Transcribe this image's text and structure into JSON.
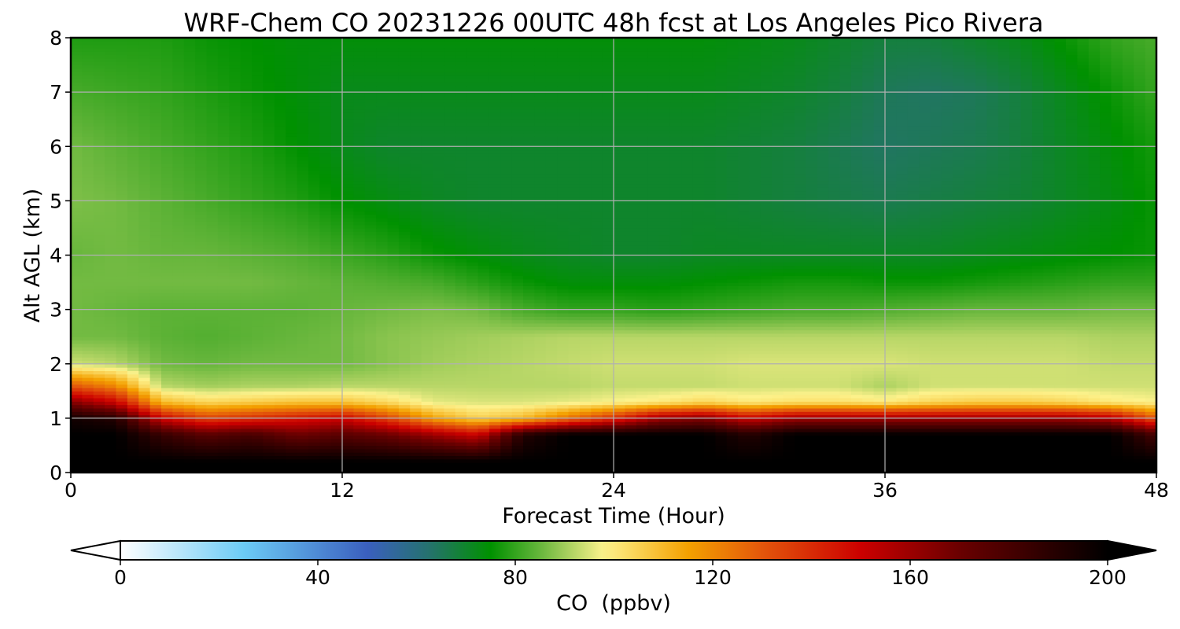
{
  "chart_data": {
    "type": "heatmap",
    "title": "WRF-Chem CO  20231226 00UTC 48h fcst at Los Angeles Pico Rivera",
    "xlabel": "Forecast Time (Hour)",
    "ylabel": "Alt AGL (km)",
    "xlim": [
      0,
      48
    ],
    "ylim": [
      0,
      8
    ],
    "x_ticks": [
      "0",
      "12",
      "24",
      "36",
      "48"
    ],
    "y_ticks": [
      "0",
      "1",
      "2",
      "3",
      "4",
      "5",
      "6",
      "7",
      "8"
    ],
    "grid": true,
    "colorbar": {
      "label": "CO  (ppbv)",
      "range": [
        0,
        200
      ],
      "ticks": [
        "0",
        "40",
        "80",
        "120",
        "160",
        "200"
      ],
      "extend": "both",
      "orientation": "horizontal",
      "colormap_stops": [
        {
          "value": 0,
          "color": "#ffffff"
        },
        {
          "value": 25,
          "color": "#6ccbf5"
        },
        {
          "value": 50,
          "color": "#3a5fbf"
        },
        {
          "value": 63,
          "color": "#24736a"
        },
        {
          "value": 75,
          "color": "#009100"
        },
        {
          "value": 85,
          "color": "#67b63c"
        },
        {
          "value": 98,
          "color": "#fdf28c"
        },
        {
          "value": 115,
          "color": "#f4a100"
        },
        {
          "value": 130,
          "color": "#e3560b"
        },
        {
          "value": 150,
          "color": "#cc0000"
        },
        {
          "value": 170,
          "color": "#6a0000"
        },
        {
          "value": 200,
          "color": "#000000"
        }
      ]
    },
    "x": [
      0,
      2,
      4,
      6,
      8,
      10,
      12,
      14,
      16,
      18,
      20,
      22,
      24,
      26,
      28,
      30,
      32,
      34,
      36,
      38,
      40,
      42,
      44,
      46,
      48
    ],
    "y": [
      0.2,
      0.7,
      1.0,
      1.3,
      1.6,
      2.0,
      2.5,
      3.0,
      3.5,
      4.0,
      5.0,
      6.0,
      7.0,
      8.0
    ],
    "z": [
      [
        200,
        200,
        200,
        200,
        200,
        200,
        200,
        200,
        200,
        200,
        200,
        200,
        200,
        200,
        200,
        200,
        200,
        200,
        200,
        200,
        200,
        200,
        200,
        200,
        200
      ],
      [
        200,
        200,
        185,
        175,
        180,
        170,
        175,
        170,
        160,
        150,
        190,
        200,
        200,
        200,
        200,
        190,
        200,
        200,
        200,
        200,
        200,
        200,
        200,
        200,
        180
      ],
      [
        195,
        190,
        150,
        135,
        140,
        145,
        150,
        135,
        115,
        105,
        110,
        125,
        140,
        160,
        165,
        150,
        160,
        160,
        160,
        160,
        160,
        160,
        160,
        155,
        130
      ],
      [
        165,
        150,
        110,
        104,
        106,
        108,
        108,
        103,
        96,
        95,
        95,
        96,
        98,
        100,
        104,
        100,
        102,
        102,
        100,
        104,
        106,
        106,
        104,
        100,
        98
      ],
      [
        130,
        120,
        92,
        90,
        91,
        91,
        92,
        92,
        92,
        92,
        92,
        92,
        93,
        93,
        93,
        94,
        94,
        94,
        91,
        94,
        94,
        94,
        94,
        94,
        94
      ],
      [
        94,
        92,
        86,
        85,
        86,
        86,
        86,
        88,
        90,
        91,
        92,
        93,
        94,
        94,
        94,
        95,
        95,
        95,
        95,
        94,
        94,
        94,
        94,
        93,
        93
      ],
      [
        86,
        86,
        84,
        83,
        84,
        85,
        86,
        88,
        89,
        90,
        91,
        92,
        92,
        92,
        92,
        92,
        92,
        92,
        92,
        92,
        92,
        92,
        92,
        91,
        91
      ],
      [
        86,
        85,
        84,
        84,
        84,
        84,
        85,
        86,
        87,
        86,
        82,
        80,
        80,
        79,
        80,
        81,
        82,
        82,
        83,
        84,
        85,
        85,
        85,
        86,
        86
      ],
      [
        86,
        86,
        86,
        86,
        86,
        85,
        84,
        83,
        82,
        79,
        76,
        74,
        74,
        74,
        75,
        76,
        77,
        77,
        76,
        76,
        77,
        78,
        79,
        80,
        80
      ],
      [
        85,
        86,
        85,
        85,
        84,
        83,
        81,
        79,
        76,
        74,
        72,
        71,
        70,
        70,
        71,
        71,
        71,
        71,
        71,
        71,
        72,
        73,
        74,
        75,
        76
      ],
      [
        87,
        86,
        84,
        82,
        80,
        78,
        75,
        73,
        71,
        70,
        70,
        70,
        70,
        70,
        70,
        69,
        68,
        67,
        66,
        67,
        68,
        69,
        71,
        73,
        76
      ],
      [
        86,
        84,
        82,
        80,
        78,
        75,
        72,
        70,
        70,
        70,
        70,
        70,
        70,
        70,
        70,
        69,
        68,
        66,
        64,
        65,
        66,
        68,
        71,
        74,
        77
      ],
      [
        82,
        81,
        80,
        78,
        76,
        74,
        72,
        72,
        72,
        72,
        72,
        72,
        72,
        72,
        72,
        71,
        70,
        68,
        65,
        64,
        65,
        68,
        72,
        76,
        80
      ],
      [
        78,
        78,
        78,
        76,
        75,
        74,
        74,
        74,
        74,
        74,
        74,
        74,
        74,
        74,
        74,
        73,
        72,
        70,
        68,
        68,
        70,
        72,
        76,
        80,
        82
      ]
    ]
  }
}
